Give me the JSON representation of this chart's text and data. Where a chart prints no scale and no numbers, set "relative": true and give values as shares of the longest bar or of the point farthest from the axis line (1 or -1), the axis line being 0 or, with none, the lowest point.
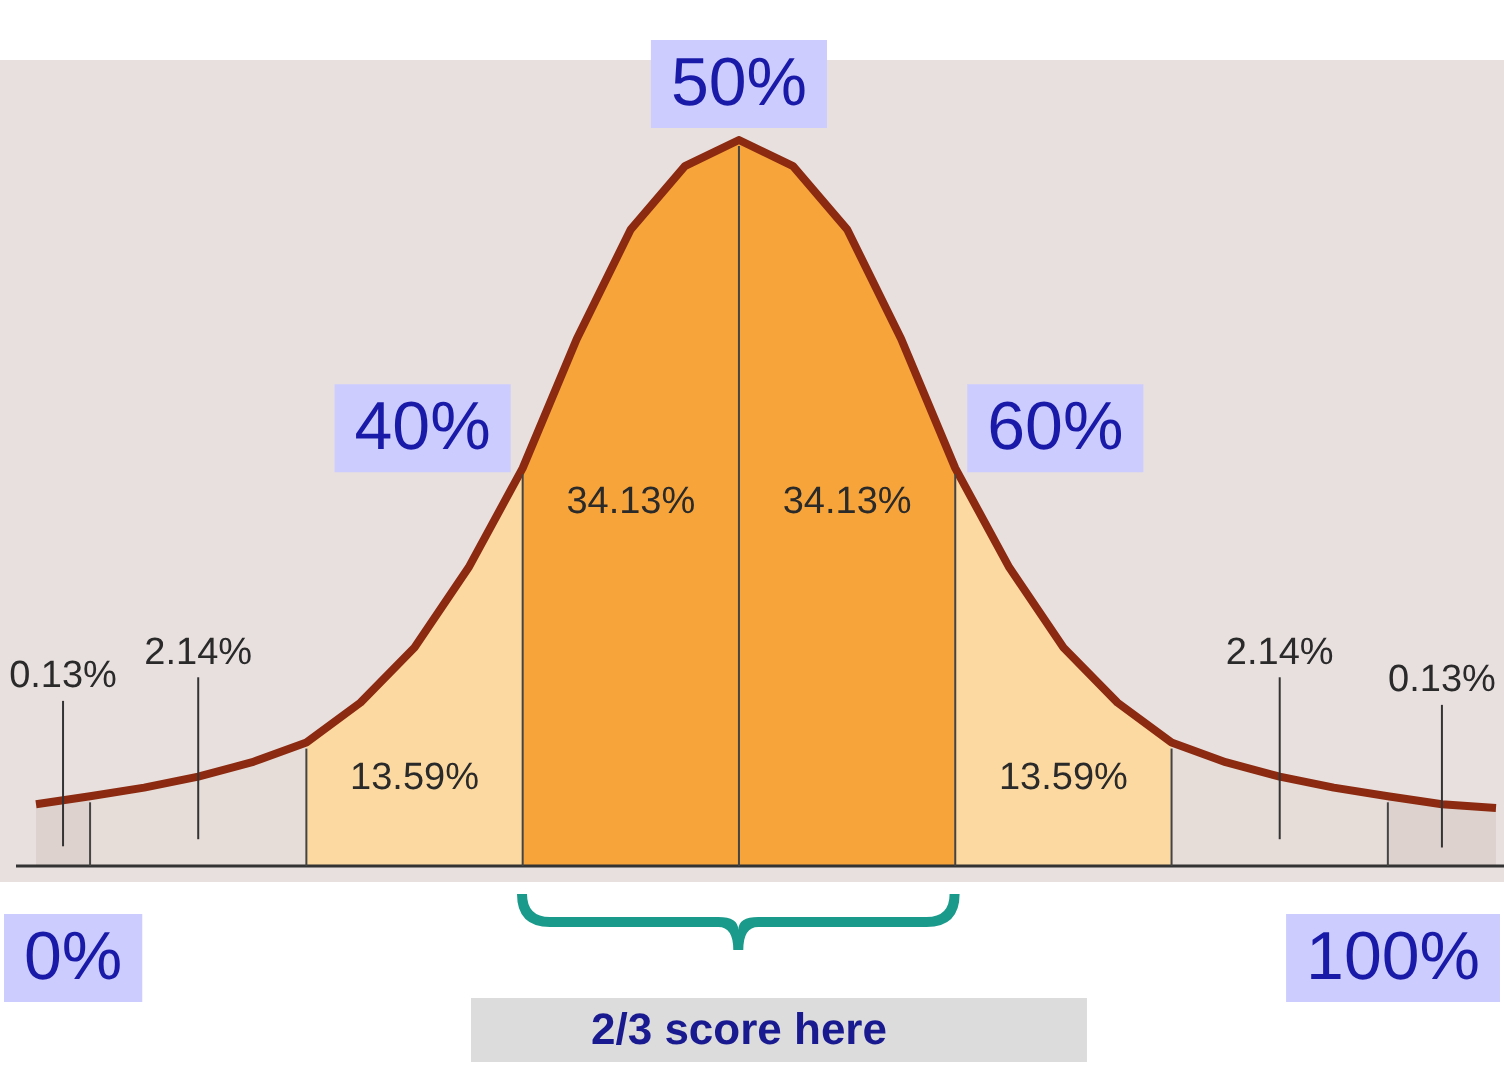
{
  "chart_data": {
    "type": "area",
    "relative": true,
    "tick_labels": false,
    "categories": [
      null,
      null,
      null,
      null,
      null,
      null,
      null,
      null,
      null,
      null,
      null,
      null,
      null,
      null,
      null,
      null,
      null,
      null,
      null,
      null,
      null,
      null,
      null,
      null,
      null,
      null,
      null,
      null
    ],
    "series": [
      {
        "color": "#ddd2ce",
        "values": [
          0.085,
          0.096,
          null,
          null,
          null,
          null,
          null,
          null,
          null,
          null,
          null,
          null,
          null,
          null,
          null,
          null,
          null,
          null,
          null,
          null,
          null,
          null,
          null,
          null,
          null,
          null,
          null,
          null
        ]
      },
      {
        "color": "#e6dcd8",
        "values": [
          null,
          0.096,
          0.108,
          0.123,
          0.143,
          0.17,
          null,
          null,
          null,
          null,
          null,
          null,
          null,
          null,
          null,
          null,
          null,
          null,
          null,
          null,
          null,
          null,
          null,
          null,
          null,
          null,
          null,
          null
        ]
      },
      {
        "color": "#fcd9a0",
        "values": [
          null,
          null,
          null,
          null,
          null,
          0.17,
          0.225,
          0.301,
          0.411,
          0.548,
          null,
          null,
          null,
          null,
          null,
          null,
          null,
          null,
          null,
          null,
          null,
          null,
          null,
          null,
          null,
          null,
          null,
          null
        ]
      },
      {
        "color": "#f7a43a",
        "values": [
          null,
          null,
          null,
          null,
          null,
          null,
          null,
          null,
          null,
          0.548,
          0.726,
          0.877,
          0.964,
          1,
          0.964,
          0.877,
          0.726,
          0.548,
          null,
          null,
          null,
          null,
          null,
          null,
          null,
          null,
          null,
          null
        ]
      },
      {
        "color": "#fcd9a0",
        "values": [
          null,
          null,
          null,
          null,
          null,
          null,
          null,
          null,
          null,
          null,
          null,
          null,
          null,
          null,
          null,
          null,
          null,
          0.548,
          0.411,
          0.301,
          0.225,
          0.17,
          null,
          null,
          null,
          null,
          null,
          null
        ]
      },
      {
        "color": "#e6dcd8",
        "values": [
          null,
          null,
          null,
          null,
          null,
          null,
          null,
          null,
          null,
          null,
          null,
          null,
          null,
          null,
          null,
          null,
          null,
          null,
          null,
          null,
          null,
          0.17,
          0.143,
          0.123,
          0.108,
          0.096,
          null,
          null
        ]
      },
      {
        "color": "#ddd2ce",
        "values": [
          null,
          null,
          null,
          null,
          null,
          null,
          null,
          null,
          null,
          null,
          null,
          null,
          null,
          null,
          null,
          null,
          null,
          null,
          null,
          null,
          null,
          null,
          null,
          null,
          null,
          0.096,
          0.085,
          0.08
        ]
      },
      {
        "type": "line",
        "color": "#8b2a10",
        "values": [
          0.085,
          0.096,
          0.108,
          0.123,
          0.143,
          0.17,
          0.225,
          0.301,
          0.411,
          0.548,
          0.726,
          0.877,
          0.964,
          1,
          0.964,
          0.877,
          0.726,
          0.548,
          0.411,
          0.301,
          0.225,
          0.17,
          0.143,
          0.123,
          0.108,
          0.096,
          0.085,
          0.08
        ]
      }
    ],
    "annotations": [
      "0.13%",
      "2.14%",
      "13.59%",
      "34.13%",
      "34.13%",
      "13.59%",
      "2.14%",
      "0.13%",
      "0%",
      "40%",
      "50%",
      "60%",
      "100%",
      "2/3 score here"
    ]
  }
}
